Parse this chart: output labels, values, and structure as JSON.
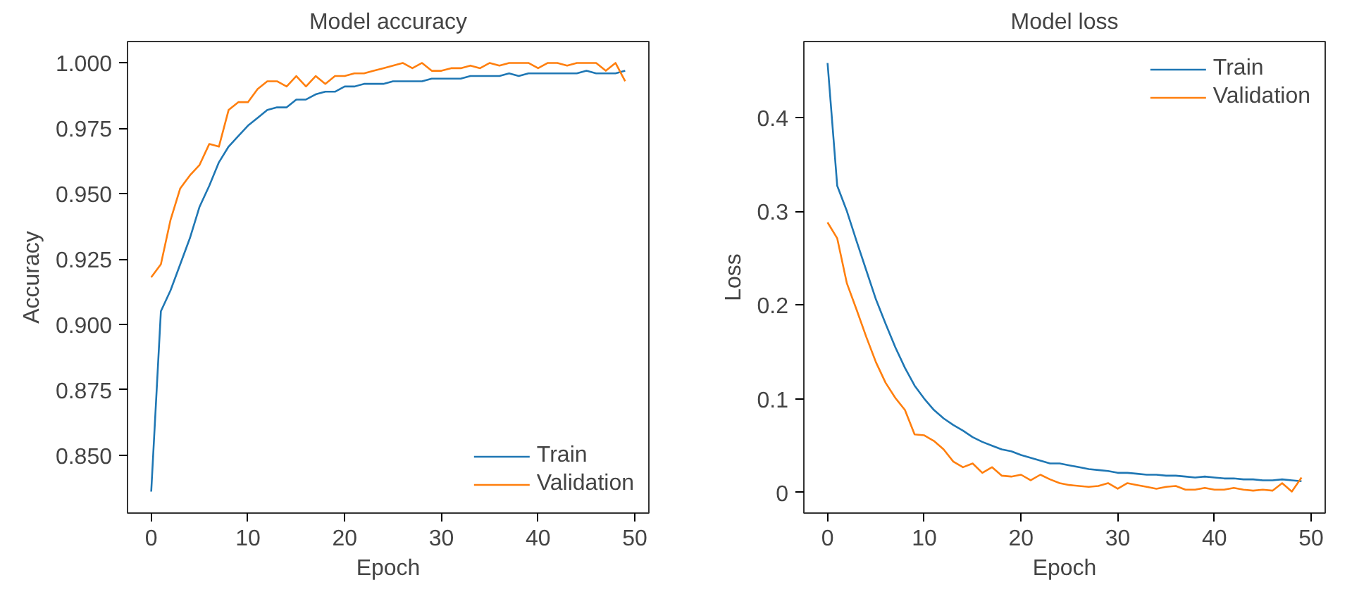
{
  "chart_data": [
    {
      "type": "line",
      "title": "Model accuracy",
      "xlabel": "Epoch",
      "ylabel": "Accuracy",
      "x": [
        0,
        1,
        2,
        3,
        4,
        5,
        6,
        7,
        8,
        9,
        10,
        11,
        12,
        13,
        14,
        15,
        16,
        17,
        18,
        19,
        20,
        21,
        22,
        23,
        24,
        25,
        26,
        27,
        28,
        29,
        30,
        31,
        32,
        33,
        34,
        35,
        36,
        37,
        38,
        39,
        40,
        41,
        42,
        43,
        44,
        45,
        46,
        47,
        48,
        49
      ],
      "xlim": [
        -2.45,
        51.45
      ],
      "xticks": [
        0,
        10,
        20,
        30,
        40,
        50
      ],
      "ylim": [
        0.8278,
        1.0082
      ],
      "yticks": [
        {
          "value": 0.85,
          "label": "0.850"
        },
        {
          "value": 0.875,
          "label": "0.875"
        },
        {
          "value": 0.9,
          "label": "0.900"
        },
        {
          "value": 0.925,
          "label": "0.925"
        },
        {
          "value": 0.95,
          "label": "0.950"
        },
        {
          "value": 0.975,
          "label": "0.975"
        },
        {
          "value": 1.0,
          "label": "1.000"
        }
      ],
      "grid": false,
      "legend": "bottom right",
      "series": [
        {
          "name": "Train",
          "color": "#1f77b4",
          "values": [
            0.836,
            0.905,
            0.913,
            0.923,
            0.933,
            0.945,
            0.953,
            0.962,
            0.968,
            0.972,
            0.976,
            0.979,
            0.982,
            0.983,
            0.983,
            0.986,
            0.986,
            0.988,
            0.989,
            0.989,
            0.991,
            0.991,
            0.992,
            0.992,
            0.992,
            0.993,
            0.993,
            0.993,
            0.993,
            0.994,
            0.994,
            0.994,
            0.994,
            0.995,
            0.995,
            0.995,
            0.995,
            0.996,
            0.995,
            0.996,
            0.996,
            0.996,
            0.996,
            0.996,
            0.996,
            0.997,
            0.996,
            0.996,
            0.996,
            0.997
          ]
        },
        {
          "name": "Validation",
          "color": "#ff7f0e",
          "values": [
            0.918,
            0.923,
            0.94,
            0.952,
            0.957,
            0.961,
            0.969,
            0.968,
            0.982,
            0.985,
            0.985,
            0.99,
            0.993,
            0.993,
            0.991,
            0.995,
            0.991,
            0.995,
            0.992,
            0.995,
            0.995,
            0.996,
            0.996,
            0.997,
            0.998,
            0.999,
            1.0,
            0.998,
            1.0,
            0.997,
            0.997,
            0.998,
            0.998,
            0.999,
            0.998,
            1.0,
            0.999,
            1.0,
            1.0,
            1.0,
            0.998,
            1.0,
            1.0,
            0.999,
            1.0,
            1.0,
            1.0,
            0.997,
            1.0,
            0.993
          ]
        }
      ]
    },
    {
      "type": "line",
      "title": "Model loss",
      "xlabel": "Epoch",
      "ylabel": "Loss",
      "x": [
        0,
        1,
        2,
        3,
        4,
        5,
        6,
        7,
        8,
        9,
        10,
        11,
        12,
        13,
        14,
        15,
        16,
        17,
        18,
        19,
        20,
        21,
        22,
        23,
        24,
        25,
        26,
        27,
        28,
        29,
        30,
        31,
        32,
        33,
        34,
        35,
        36,
        37,
        38,
        39,
        40,
        41,
        42,
        43,
        44,
        45,
        46,
        47,
        48,
        49
      ],
      "xlim": [
        -2.45,
        51.45
      ],
      "xticks": [
        0,
        10,
        20,
        30,
        40,
        50
      ],
      "ylim": [
        -0.0219,
        0.4809
      ],
      "yticks": [
        0,
        0.1,
        0.2,
        0.3,
        0.4
      ],
      "grid": false,
      "legend": "top right",
      "series": [
        {
          "name": "Train",
          "color": "#1f77b4",
          "values": [
            0.458,
            0.327,
            0.3,
            0.268,
            0.237,
            0.206,
            0.18,
            0.155,
            0.133,
            0.114,
            0.1,
            0.088,
            0.079,
            0.072,
            0.066,
            0.059,
            0.054,
            0.05,
            0.046,
            0.044,
            0.04,
            0.037,
            0.034,
            0.031,
            0.031,
            0.029,
            0.027,
            0.025,
            0.024,
            0.023,
            0.021,
            0.021,
            0.02,
            0.019,
            0.019,
            0.018,
            0.018,
            0.017,
            0.016,
            0.017,
            0.016,
            0.015,
            0.015,
            0.014,
            0.014,
            0.013,
            0.013,
            0.014,
            0.013,
            0.012
          ]
        },
        {
          "name": "Validation",
          "color": "#ff7f0e",
          "values": [
            0.288,
            0.271,
            0.223,
            0.195,
            0.166,
            0.139,
            0.117,
            0.101,
            0.088,
            0.062,
            0.061,
            0.055,
            0.046,
            0.033,
            0.027,
            0.031,
            0.021,
            0.027,
            0.018,
            0.017,
            0.019,
            0.013,
            0.019,
            0.014,
            0.01,
            0.008,
            0.007,
            0.006,
            0.007,
            0.01,
            0.004,
            0.01,
            0.008,
            0.006,
            0.004,
            0.006,
            0.007,
            0.003,
            0.003,
            0.005,
            0.003,
            0.003,
            0.005,
            0.003,
            0.002,
            0.003,
            0.002,
            0.01,
            0.001,
            0.016
          ]
        }
      ]
    }
  ]
}
